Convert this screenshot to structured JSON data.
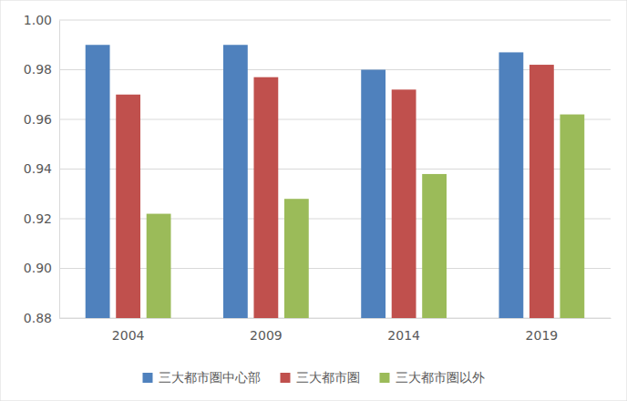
{
  "chart_data": {
    "type": "bar",
    "categories": [
      "2004",
      "2009",
      "2014",
      "2019"
    ],
    "series": [
      {
        "name": "三大都市圏中心部",
        "color": "#4f81bd",
        "values": [
          0.99,
          0.99,
          0.98,
          0.987
        ]
      },
      {
        "name": "三大都市圏",
        "color": "#c0504d",
        "values": [
          0.97,
          0.977,
          0.972,
          0.982
        ]
      },
      {
        "name": "三大都市圏以外",
        "color": "#9bbb59",
        "values": [
          0.922,
          0.928,
          0.938,
          0.962
        ]
      }
    ],
    "ylim": [
      0.88,
      1.0
    ],
    "yticks": [
      0.88,
      {
        "value": 0.9,
        "label": "0.90"
      },
      0.92,
      0.94,
      0.96,
      0.98,
      {
        "value": 1.0,
        "label": "1.00"
      }
    ],
    "grid": true,
    "legend": "bottom"
  }
}
